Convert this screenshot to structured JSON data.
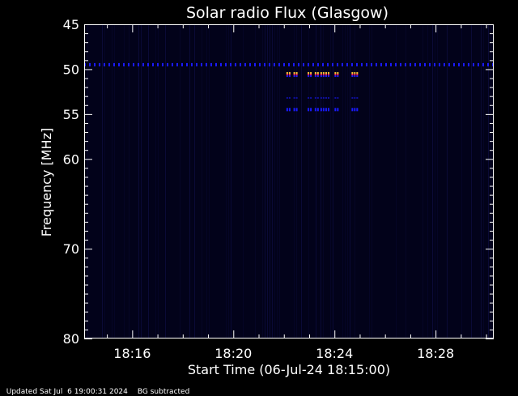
{
  "chart_data": {
    "type": "heatmap",
    "title": "Solar radio Flux (Glasgow)",
    "xlabel": "Start Time (06-Jul-24 18:15:00)",
    "ylabel": "Frequency [MHz]",
    "x_range_minutes": [
      -0.9,
      15.3
    ],
    "ylim": [
      45,
      80
    ],
    "y_scale": "linear",
    "x_tick_labels": [
      "18:16",
      "18:20",
      "18:24",
      "18:28"
    ],
    "x_tick_minutes": [
      1,
      5,
      9,
      13
    ],
    "y_tick_values": [
      45,
      50,
      55,
      60,
      70,
      80
    ],
    "colors": {
      "background": "#000000",
      "field": "#02021a",
      "band": "#1a1aff",
      "burst_hot": "#ffcc33",
      "burst_mid": "#ff3366"
    },
    "features": [
      {
        "name": "interference band",
        "freq_mhz": 49.5,
        "t_start": -0.9,
        "t_end": 15.3,
        "intensity": "low"
      },
      {
        "name": "burst line",
        "freq_mhz": 50.6,
        "t_start": 7.1,
        "t_end": 9.9,
        "intensity": "high"
      },
      {
        "name": "burst line",
        "freq_mhz": 53.2,
        "t_start": 7.1,
        "t_end": 9.9,
        "intensity": "low"
      },
      {
        "name": "burst line",
        "freq_mhz": 54.5,
        "t_start": 7.1,
        "t_end": 9.9,
        "intensity": "medium"
      }
    ]
  },
  "footer": {
    "updated": "Updated Sat Jul  6 19:00:31 2024",
    "note": "BG subtracted"
  }
}
